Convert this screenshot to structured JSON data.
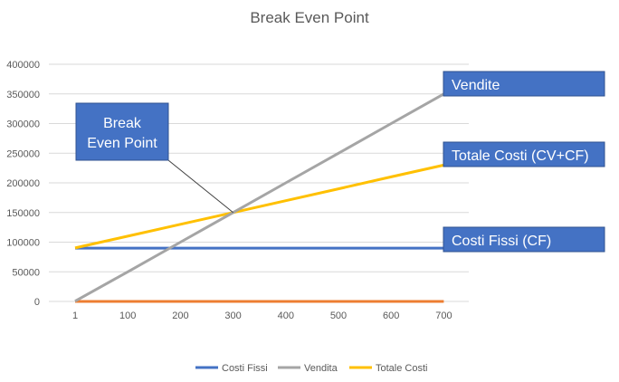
{
  "chart_data": {
    "type": "line",
    "title": "Break Even Point",
    "categories": [
      "1",
      "100",
      "200",
      "300",
      "400",
      "500",
      "600",
      "700"
    ],
    "ylim": [
      0,
      400000
    ],
    "yticks": [
      0,
      50000,
      100000,
      150000,
      200000,
      250000,
      300000,
      350000,
      400000
    ],
    "grid": true,
    "legend_position": "bottom",
    "series": [
      {
        "name": "Costi Fissi",
        "color": "#4472C4",
        "values": [
          90000,
          90000,
          90000,
          90000,
          90000,
          90000,
          90000,
          90000
        ]
      },
      {
        "name": "Vendita",
        "color": "#A5A5A5",
        "values": [
          500,
          50000,
          100000,
          150000,
          200000,
          250000,
          300000,
          350000
        ]
      },
      {
        "name": "Totale Costi",
        "color": "#FFC000",
        "values": [
          90200,
          110000,
          130000,
          150000,
          170000,
          190000,
          210000,
          230000
        ]
      },
      {
        "name": "",
        "color": "#ED7D31",
        "values": [
          0,
          0,
          0,
          0,
          0,
          0,
          0,
          0
        ]
      }
    ],
    "annotations": {
      "break_even_label": [
        "Break",
        "Even Point"
      ],
      "vendite_label": "Vendite",
      "totale_costi_label": "Totale Costi (CV+CF)",
      "costi_fissi_label": "Costi Fissi (CF)",
      "callout_color": "#4472C4",
      "break_even_point": {
        "x_index": 3,
        "y": 150000
      }
    }
  }
}
